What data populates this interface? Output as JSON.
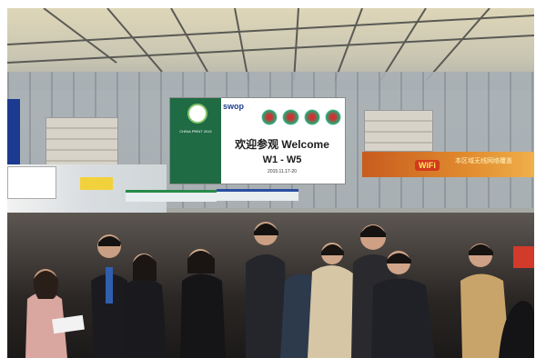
{
  "image": {
    "alt_subject": "crowded exhibition hall entrance"
  },
  "signage": {
    "main_brand": "swop",
    "green_panel_text": "CHINA PRINT 2015",
    "welcome_text": "欢迎参观 Welcome",
    "hall_text": "W1 - W5",
    "date_text": "2015.11.17-20",
    "wifi_label": "WiFi",
    "wifi_caption": "本区域无线网络覆盖"
  },
  "colors": {
    "sign_green": "#1f6b43",
    "banner_orange": "#e08a2e",
    "wifi_red": "#d23a1c"
  }
}
